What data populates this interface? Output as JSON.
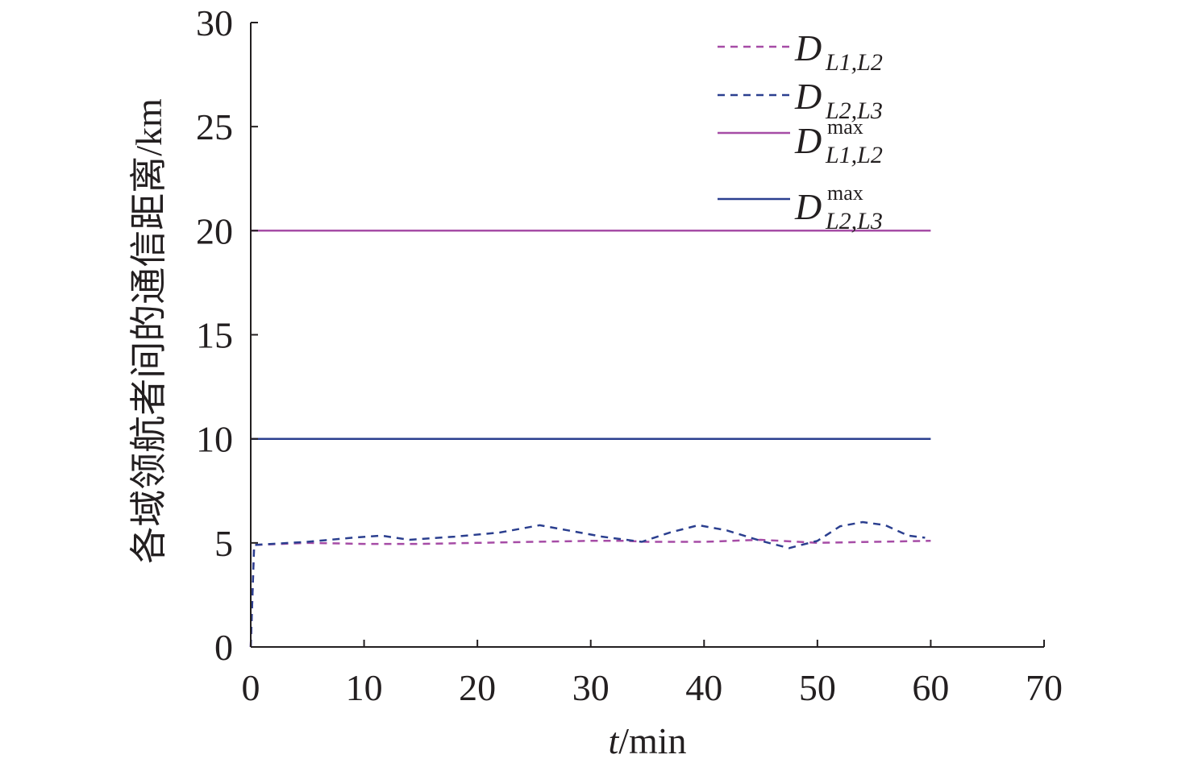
{
  "chart_data": {
    "type": "line",
    "xlabel": {
      "italic": "t",
      "rest": "/min"
    },
    "ylabel": "各域领航者间的通信距离/km",
    "xlim": [
      0,
      70
    ],
    "ylim": [
      0,
      30
    ],
    "xticks": [
      "0",
      "10",
      "20",
      "30",
      "40",
      "50",
      "60",
      "70"
    ],
    "yticks": [
      "0",
      "5",
      "10",
      "15",
      "20",
      "25",
      "30"
    ],
    "grid": false,
    "legend_position": "top-right",
    "colors": {
      "axis": "#231f20",
      "magenta": "#a64ca6",
      "blue": "#2b3f8f"
    },
    "series": [
      {
        "name": "D_{L1,L2}",
        "label_main": "D",
        "label_sub": "L1,L2",
        "label_sup": "",
        "color": "#a64ca6",
        "style": "dashed",
        "x": [
          0,
          0.3,
          5,
          10,
          15,
          20,
          25,
          30,
          33,
          35,
          40,
          45,
          50,
          55,
          60
        ],
        "y": [
          0,
          4.9,
          5.0,
          4.95,
          4.95,
          5.0,
          5.05,
          5.1,
          5.1,
          5.05,
          5.05,
          5.15,
          5.0,
          5.05,
          5.1
        ]
      },
      {
        "name": "D_{L2,L3}",
        "label_main": "D",
        "label_sub": "L2,L3",
        "label_sup": "",
        "color": "#2b3f8f",
        "style": "dashed",
        "x": [
          0,
          0.3,
          5,
          9,
          11.5,
          14,
          18,
          22,
          25.5,
          28,
          31,
          34.5,
          37,
          39.5,
          42,
          45,
          47.5,
          50,
          52,
          54,
          56,
          58,
          59.5
        ],
        "y": [
          0,
          4.9,
          5.05,
          5.25,
          5.35,
          5.15,
          5.3,
          5.5,
          5.85,
          5.6,
          5.3,
          5.05,
          5.5,
          5.85,
          5.6,
          5.1,
          4.75,
          5.1,
          5.8,
          6.0,
          5.85,
          5.35,
          5.25
        ]
      },
      {
        "name": "D^{max}_{L1,L2}",
        "label_main": "D",
        "label_sub": "L1,L2",
        "label_sup": "max",
        "color": "#a64ca6",
        "style": "solid",
        "x": [
          0,
          60
        ],
        "y": [
          20,
          20
        ]
      },
      {
        "name": "D^{max}_{L2,L3}",
        "label_main": "D",
        "label_sub": "L2,L3",
        "label_sup": "max",
        "color": "#2b3f8f",
        "style": "solid",
        "x": [
          0,
          60
        ],
        "y": [
          10,
          10
        ]
      }
    ]
  }
}
